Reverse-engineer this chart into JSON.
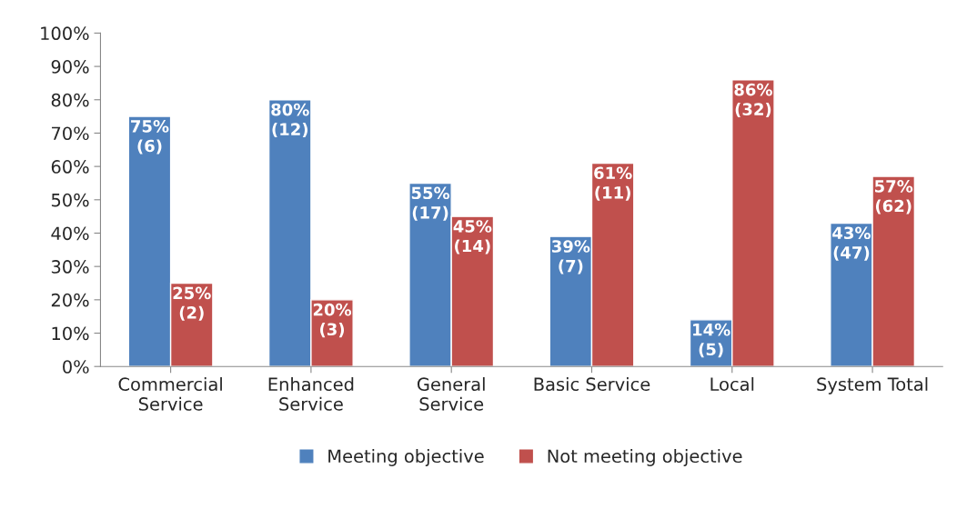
{
  "chart_data": {
    "type": "bar",
    "categories": [
      "Commercial\nService",
      "Enhanced\nService",
      "General\nService",
      "Basic Service",
      "Local",
      "System Total"
    ],
    "series": [
      {
        "name": "Meeting objective",
        "color": "#4f81bd",
        "values": [
          75,
          80,
          55,
          39,
          14,
          43
        ],
        "value_labels": [
          "75%\n(6)",
          "80%\n(12)",
          "55%\n(17)",
          "39%\n(7)",
          "14%\n(5)",
          "43%\n(47)"
        ]
      },
      {
        "name": "Not meeting objective",
        "color": "#c0504d",
        "values": [
          25,
          20,
          45,
          61,
          86,
          57
        ],
        "value_labels": [
          "25%\n(2)",
          "20%\n(3)",
          "45%\n(14)",
          "61%\n(11)",
          "86%\n(32)",
          "57%\n(62)"
        ]
      }
    ],
    "ylim": [
      0,
      100
    ],
    "yticks": [
      {
        "value": 0,
        "label": "0%"
      },
      {
        "value": 10,
        "label": "10%"
      },
      {
        "value": 20,
        "label": "20%"
      },
      {
        "value": 30,
        "label": "30%"
      },
      {
        "value": 40,
        "label": "40%"
      },
      {
        "value": 50,
        "label": "50%"
      },
      {
        "value": 60,
        "label": "60%"
      },
      {
        "value": 70,
        "label": "70%"
      },
      {
        "value": 80,
        "label": "80%"
      },
      {
        "value": 90,
        "label": "90%"
      },
      {
        "value": 100,
        "label": "100%"
      }
    ],
    "grid": false,
    "legend": "bottom"
  }
}
